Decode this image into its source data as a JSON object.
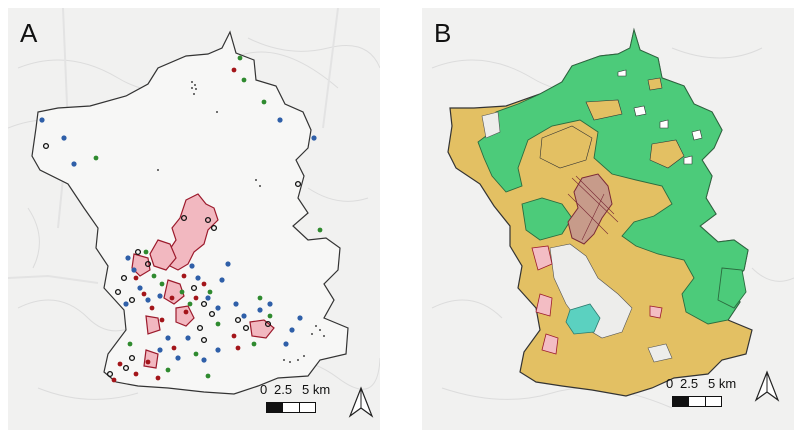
{
  "panels": [
    {
      "letter": "A",
      "scale": {
        "t0": "0",
        "t1": "2.5",
        "t2": "5 km"
      },
      "north_icon": "north-arrow-icon"
    },
    {
      "letter": "B",
      "scale": {
        "t0": "0",
        "t1": "2.5",
        "t2": "5 km"
      },
      "north_icon": "north-arrow-icon"
    }
  ],
  "colors": {
    "background": "#f1f1f0",
    "terrain": "#dcdcdc",
    "boundary": "#333333",
    "red_point": "#a3151a",
    "blue_point": "#2f5fa8",
    "green_point": "#2f8a2f",
    "patch_fill": "#f2b8c0",
    "patch_outline": "#9c1a2c",
    "green_class": "#4ccb7a",
    "yellow_class": "#e3c063",
    "pink_class": "#f3bdc4",
    "cyan_class": "#5bd1c0",
    "gray_class": "#e6e6e6"
  }
}
